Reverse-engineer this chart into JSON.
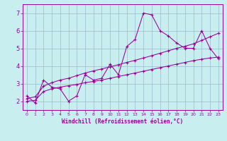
{
  "xlabel": "Windchill (Refroidissement éolien,°C)",
  "bg_color": "#c8eef0",
  "line_color": "#990099",
  "grid_color": "#99bbcc",
  "xlim": [
    -0.5,
    23.5
  ],
  "ylim": [
    1.5,
    7.5
  ],
  "xticks": [
    0,
    1,
    2,
    3,
    4,
    5,
    6,
    7,
    8,
    9,
    10,
    11,
    12,
    13,
    14,
    15,
    16,
    17,
    18,
    19,
    20,
    21,
    22,
    23
  ],
  "yticks": [
    2,
    3,
    4,
    5,
    6,
    7
  ],
  "series1_x": [
    0,
    1,
    2,
    3,
    4,
    5,
    6,
    7,
    8,
    9,
    10,
    11,
    12,
    13,
    14,
    15,
    16,
    17,
    18,
    19,
    20,
    21,
    22,
    23
  ],
  "series1_y": [
    2.3,
    1.9,
    3.2,
    2.8,
    2.7,
    2.0,
    2.3,
    3.5,
    3.2,
    3.3,
    4.1,
    3.5,
    5.1,
    5.5,
    7.0,
    6.9,
    6.0,
    5.7,
    5.3,
    5.0,
    5.0,
    6.0,
    5.0,
    4.4
  ],
  "series2_x": [
    0,
    1,
    2,
    3,
    4,
    5,
    6,
    7,
    8,
    9,
    10,
    11,
    12,
    13,
    14,
    15,
    16,
    17,
    18,
    19,
    20,
    21,
    22,
    23
  ],
  "series2_y": [
    2.15,
    2.25,
    2.85,
    3.05,
    3.2,
    3.3,
    3.45,
    3.6,
    3.72,
    3.83,
    3.95,
    4.07,
    4.2,
    4.32,
    4.45,
    4.58,
    4.72,
    4.86,
    5.0,
    5.12,
    5.25,
    5.45,
    5.65,
    5.85
  ],
  "series3_x": [
    0,
    1,
    2,
    3,
    4,
    5,
    6,
    7,
    8,
    9,
    10,
    11,
    12,
    13,
    14,
    15,
    16,
    17,
    18,
    19,
    20,
    21,
    22,
    23
  ],
  "series3_y": [
    2.0,
    2.05,
    2.55,
    2.7,
    2.8,
    2.88,
    2.95,
    3.05,
    3.12,
    3.2,
    3.3,
    3.4,
    3.5,
    3.6,
    3.7,
    3.8,
    3.9,
    4.0,
    4.1,
    4.2,
    4.3,
    4.38,
    4.45,
    4.5
  ],
  "xlabel_fontsize": 5.5,
  "ytick_fontsize": 6,
  "xtick_fontsize": 4.5
}
